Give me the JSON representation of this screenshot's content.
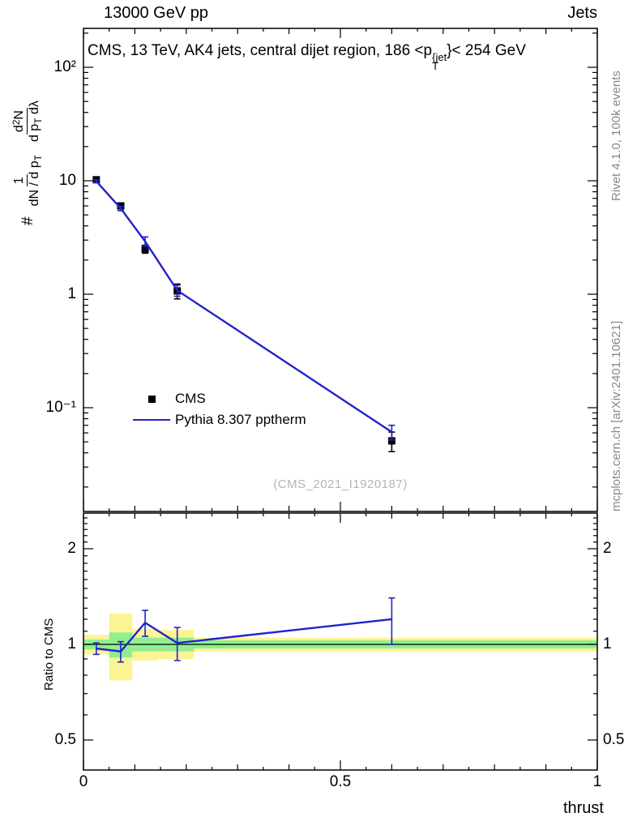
{
  "header": {
    "left": "13000 GeV pp",
    "right": "Jets"
  },
  "side": {
    "top": "Rivet 4.1.0, 100k events",
    "bottom": "mcplots.cern.ch [arXiv:2401.10621]"
  },
  "main": {
    "title": {
      "prefix": "CMS, 13 TeV, AK4 jets, central dijet region, 186 <p",
      "sup": "{jet",
      "sub": "T",
      "suffix": "}< 254 GeV"
    },
    "ylabel": {
      "prefix": "#",
      "frac1": {
        "num": "1",
        "den_a": "dN / d p",
        "den_sub": "T"
      },
      "frac2": {
        "num_a": "d",
        "num_sup": "2",
        "num_b": "N",
        "den_a": "d p",
        "den_sub": "T",
        "den_b": " dλ"
      }
    },
    "watermark": "(CMS_2021_I1920187)",
    "legend": [
      {
        "label": "CMS",
        "marker": "black-square",
        "color": "#000000"
      },
      {
        "label": "Pythia 8.307 pptherm",
        "marker": "blue-line",
        "color": "#2222cc"
      }
    ]
  },
  "ratio": {
    "ylabel": "Ratio to CMS"
  },
  "xlabel": "thrust",
  "chart_data": {
    "type": "line",
    "title": "CMS, 13 TeV, AK4 jets, central dijet region, 186 < pT^{jet} < 254 GeV",
    "xlabel": "thrust",
    "x_range": [
      0,
      1
    ],
    "x_ticks": [
      {
        "v": 0,
        "label": "0"
      },
      {
        "v": 0.5,
        "label": "0.5"
      },
      {
        "v": 1,
        "label": "1"
      }
    ],
    "main_panel": {
      "ylabel": "# 1/(dN/dpT) d2N/(dpT dlambda)",
      "y_scale": "log",
      "y_range": [
        0.0125,
        220
      ],
      "y_ticks": [
        {
          "v": 100,
          "label": "10²"
        },
        {
          "v": 10,
          "label": "10"
        },
        {
          "v": 1,
          "label": "1"
        },
        {
          "v": 0.1,
          "label": "10⁻¹"
        }
      ],
      "series": [
        {
          "name": "CMS",
          "style": "points",
          "color": "#000000",
          "x": [
            0.025,
            0.0725,
            0.12,
            0.1825,
            0.6
          ],
          "y": [
            10.2,
            6.0,
            2.5,
            1.07,
            0.051
          ],
          "yerr": [
            0.5,
            0.35,
            0.2,
            0.16,
            0.01
          ]
        },
        {
          "name": "Pythia 8.307 pptherm",
          "style": "line",
          "color": "#2222cc",
          "x": [
            0.025,
            0.0725,
            0.12,
            0.1825,
            0.6
          ],
          "y": [
            9.9,
            5.7,
            2.92,
            1.08,
            0.061
          ],
          "yerr": [
            0.25,
            0.25,
            0.28,
            0.12,
            0.009
          ]
        }
      ]
    },
    "ratio_panel": {
      "ylabel": "Ratio to CMS",
      "y_scale": "log",
      "y_range": [
        0.4,
        2.6
      ],
      "y_ticks": [
        {
          "v": 0.5,
          "label": "0.5"
        },
        {
          "v": 1,
          "label": "1"
        },
        {
          "v": 2,
          "label": "2"
        }
      ],
      "reference_line": 1,
      "line": {
        "name": "Pythia 8.307 pptherm / CMS",
        "color": "#2222cc",
        "x": [
          0.025,
          0.0725,
          0.12,
          0.1825,
          0.6
        ],
        "y": [
          0.97,
          0.95,
          1.17,
          1.01,
          1.2
        ],
        "yerr": [
          0.04,
          0.07,
          0.11,
          0.12,
          0.2
        ]
      },
      "bands": {
        "yellow_color": "#fbf492",
        "green_color": "#90ee90",
        "yellow": [
          [
            0,
            0.05,
            0.93,
            1.07
          ],
          [
            0.05,
            0.095,
            0.77,
            1.25
          ],
          [
            0.095,
            0.145,
            0.89,
            1.12
          ],
          [
            0.145,
            0.215,
            0.9,
            1.11
          ],
          [
            0.215,
            1,
            0.95,
            1.05
          ]
        ],
        "green": [
          [
            0,
            0.05,
            0.965,
            1.035
          ],
          [
            0.05,
            0.095,
            0.91,
            1.09
          ],
          [
            0.095,
            0.145,
            0.95,
            1.05
          ],
          [
            0.145,
            0.215,
            0.95,
            1.05
          ],
          [
            0.215,
            1,
            0.97,
            1.03
          ]
        ]
      }
    }
  }
}
